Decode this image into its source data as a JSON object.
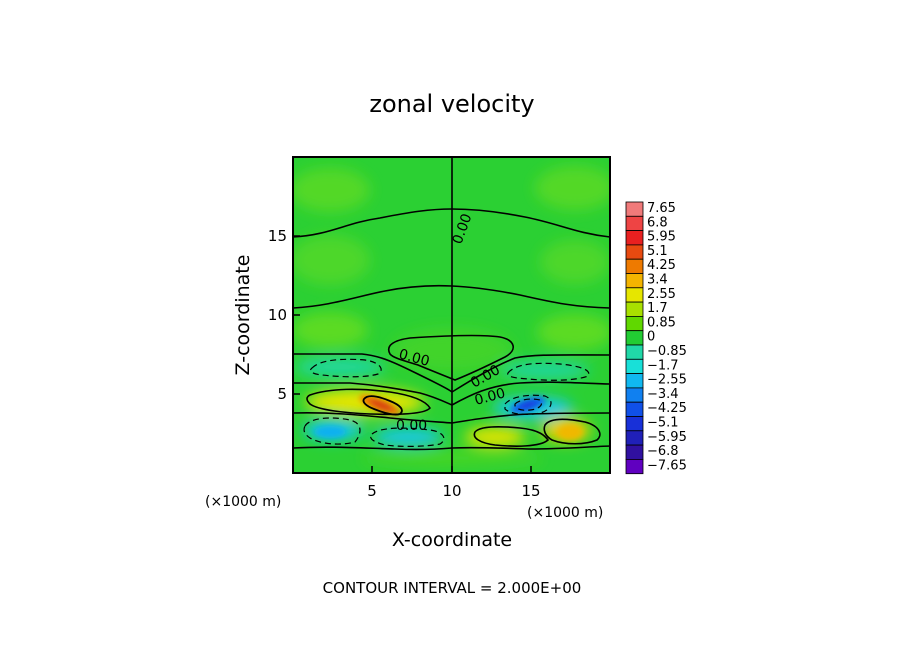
{
  "chart_data": {
    "type": "heatmap",
    "title": "zonal velocity",
    "xlabel": "X-coordinate",
    "ylabel": "Z-coordinate",
    "x_unit_label": "(×1000 m)",
    "z_unit_label": "(×1000 m)",
    "xlim": [
      0,
      20
    ],
    "ylim": [
      0,
      20
    ],
    "x_ticks": [
      5,
      10,
      15
    ],
    "y_ticks": [
      5,
      10,
      15
    ],
    "contour_interval_text": "CONTOUR INTERVAL = 2.000E+00",
    "contour_label": "0.00",
    "colorbar": {
      "labels": [
        "7.65",
        "6.8",
        "5.95",
        "5.1",
        "4.25",
        "3.4",
        "2.55",
        "1.7",
        "0.85",
        "0",
        "−0.85",
        "−1.7",
        "−2.55",
        "−3.4",
        "−4.25",
        "−5.1",
        "−5.95",
        "−6.8",
        "−7.65"
      ],
      "colors": [
        "#f07a7a",
        "#ee4444",
        "#e82020",
        "#e84a10",
        "#ee7a00",
        "#f4b400",
        "#e6e600",
        "#a8e000",
        "#60d800",
        "#22cc33",
        "#20d8a8",
        "#18e0d8",
        "#10b8f0",
        "#1080f0",
        "#1050e8",
        "#1830d8",
        "#2020b8",
        "#3010a0",
        "#6000c0"
      ]
    },
    "features": [
      {
        "type": "max",
        "x": 5.5,
        "z": 4.3,
        "value": 5.0
      },
      {
        "type": "min",
        "x": 14.5,
        "z": 4.2,
        "value": -4.5
      },
      {
        "type": "min",
        "x": 2.5,
        "z": 2.5,
        "value": -2.6
      },
      {
        "type": "min",
        "x": 6.0,
        "z": 2.3,
        "value": -2.2
      },
      {
        "type": "max",
        "x": 16.5,
        "z": 2.7,
        "value": 3.0
      }
    ]
  },
  "colors": {
    "background": "#22cc33",
    "line": "#000000"
  }
}
